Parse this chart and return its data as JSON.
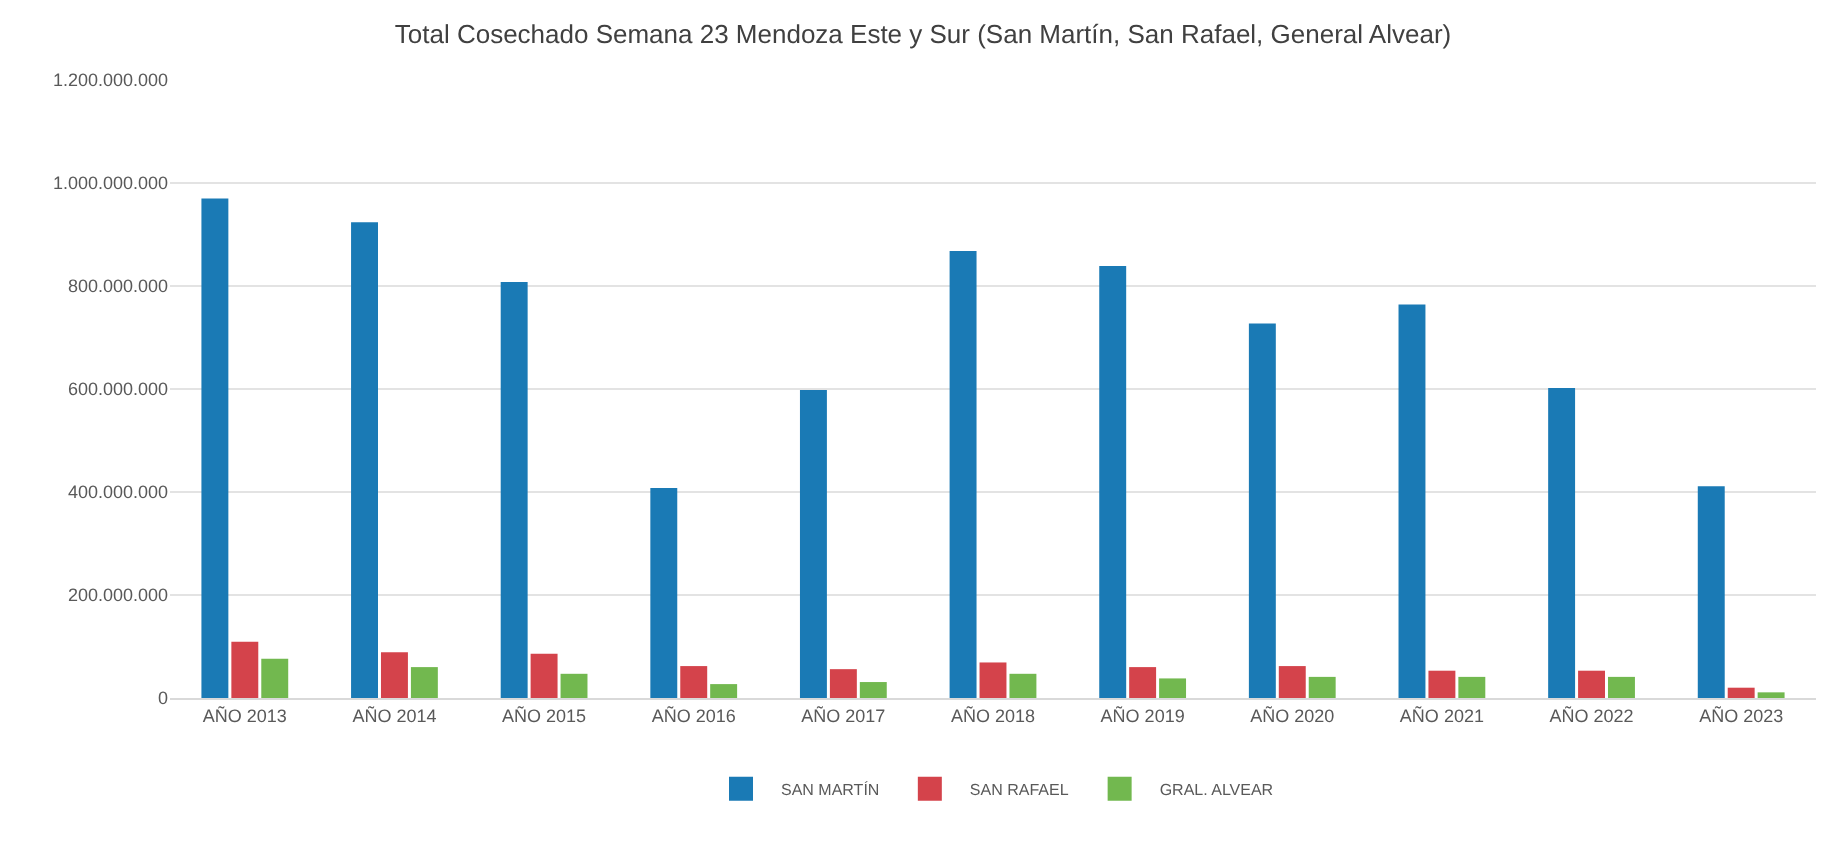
{
  "chart_data": {
    "type": "bar",
    "title": "Total Cosechado Semana 23 Mendoza Este y Sur (San Martín, San Rafael, General Alvear)",
    "categories": [
      "AÑO 2013",
      "AÑO 2014",
      "AÑO 2015",
      "AÑO 2016",
      "AÑO 2017",
      "AÑO 2018",
      "AÑO 2019",
      "AÑO 2020",
      "AÑO 2021",
      "AÑO 2022",
      "AÑO 2023"
    ],
    "series": [
      {
        "name": "SAN MARTÍN",
        "color": "#1a7ab5",
        "values": [
          970000000,
          924000000,
          808000000,
          408000000,
          598000000,
          868000000,
          839000000,
          727000000,
          764000000,
          602000000,
          411000000
        ]
      },
      {
        "name": "SAN RAFAEL",
        "color": "#d4434b",
        "values": [
          109000000,
          89000000,
          86000000,
          62000000,
          56000000,
          69000000,
          60000000,
          62000000,
          53000000,
          53000000,
          20000000
        ]
      },
      {
        "name": "GRAL. ALVEAR",
        "color": "#72b84f",
        "values": [
          76000000,
          60000000,
          47000000,
          27000000,
          31000000,
          47000000,
          38000000,
          41000000,
          41000000,
          41000000,
          11000000
        ]
      }
    ],
    "ylim": [
      0,
      1200000000
    ],
    "yticks": [
      0,
      {
        "value": 200000000,
        "label": "200.000.000"
      },
      {
        "value": 400000000,
        "label": "400.000.000"
      },
      {
        "value": 600000000,
        "label": "600.000.000"
      },
      {
        "value": 800000000,
        "label": "800.000.000"
      },
      {
        "value": 1000000000,
        "label": "1.000.000.000"
      },
      {
        "value": 1200000000,
        "label": "1.200.000.000"
      }
    ],
    "grid": "y",
    "legend": "bottom"
  }
}
